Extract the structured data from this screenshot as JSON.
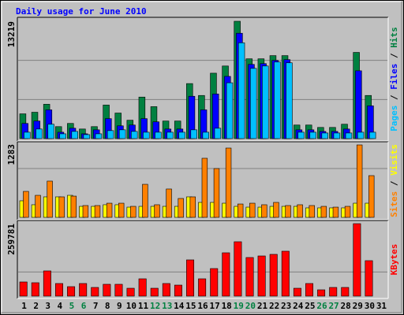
{
  "chart_data": [
    {
      "type": "bar",
      "title": "Daily usage for June 2010",
      "ylim": [
        0,
        13219
      ],
      "yticks": [
        13219
      ],
      "series": [
        {
          "name": "Hits",
          "color": "#008040",
          "values": [
            2790,
            2970,
            3870,
            1350,
            1710,
            1080,
            1350,
            3780,
            2880,
            2070,
            4680,
            3600,
            1980,
            1980,
            6200,
            4860,
            7370,
            8180,
            13219,
            8990,
            8990,
            9350,
            9350,
            1530,
            1530,
            1260,
            1260,
            1620,
            9710,
            4860,
            0
          ]
        },
        {
          "name": "Files",
          "color": "#0000ff",
          "values": [
            1710,
            1980,
            3240,
            720,
            1170,
            540,
            990,
            2250,
            1440,
            1530,
            2250,
            1890,
            1080,
            1080,
            4770,
            3240,
            5030,
            7010,
            11870,
            8360,
            8450,
            8810,
            8900,
            990,
            990,
            810,
            810,
            1080,
            7640,
            3690,
            0
          ]
        },
        {
          "name": "Pages",
          "color": "#00c0ff",
          "values": [
            720,
            1080,
            1620,
            540,
            810,
            450,
            540,
            900,
            990,
            810,
            720,
            720,
            720,
            720,
            990,
            720,
            1170,
            6290,
            10790,
            7910,
            8180,
            8630,
            8540,
            720,
            720,
            630,
            630,
            630,
            720,
            720,
            0
          ]
        }
      ]
    },
    {
      "type": "bar",
      "ylim": [
        0,
        1283
      ],
      "yticks": [
        1283
      ],
      "series": [
        {
          "name": "Visits",
          "color": "#ffff00",
          "values": [
            290,
            221,
            359,
            359,
            386,
            193,
            193,
            221,
            221,
            179,
            193,
            193,
            193,
            193,
            359,
            262,
            262,
            248,
            193,
            179,
            179,
            193,
            193,
            193,
            166,
            166,
            166,
            166,
            248,
            248,
            0
          ]
        },
        {
          "name": "Sites",
          "color": "#ff8000",
          "values": [
            455,
            386,
            635,
            359,
            372,
            207,
            207,
            248,
            248,
            193,
            579,
            221,
            497,
            331,
            359,
            1035,
            855,
            1214,
            234,
            248,
            221,
            262,
            207,
            221,
            207,
            193,
            179,
            193,
            1269,
            731,
            0
          ]
        }
      ]
    },
    {
      "type": "bar",
      "ylim": [
        0,
        259781
      ],
      "yticks": [
        259781
      ],
      "categories": [
        "1",
        "2",
        "3",
        "4",
        "5",
        "6",
        "7",
        "8",
        "9",
        "10",
        "11",
        "12",
        "13",
        "14",
        "15",
        "16",
        "17",
        "18",
        "19",
        "20",
        "21",
        "22",
        "23",
        "24",
        "25",
        "26",
        "27",
        "28",
        "29",
        "30",
        "31"
      ],
      "category_colors": [
        "#000000",
        "#000000",
        "#000000",
        "#000000",
        "#008040",
        "#008040",
        "#000000",
        "#000000",
        "#000000",
        "#000000",
        "#000000",
        "#008040",
        "#008040",
        "#000000",
        "#000000",
        "#000000",
        "#000000",
        "#000000",
        "#008040",
        "#008040",
        "#000000",
        "#000000",
        "#000000",
        "#000000",
        "#000000",
        "#008040",
        "#008040",
        "#000000",
        "#000000",
        "#000000",
        "#000000"
      ],
      "series": [
        {
          "name": "KBytes",
          "color": "#ff0000",
          "values": [
            50800,
            48000,
            90400,
            45200,
            33900,
            45200,
            31100,
            42400,
            42400,
            28200,
            62100,
            28200,
            45200,
            39500,
            129900,
            62100,
            98800,
            155300,
            194900,
            138400,
            144000,
            149700,
            161000,
            28200,
            45200,
            22600,
            31100,
            31100,
            259781,
            127100,
            0
          ]
        }
      ]
    }
  ]
}
